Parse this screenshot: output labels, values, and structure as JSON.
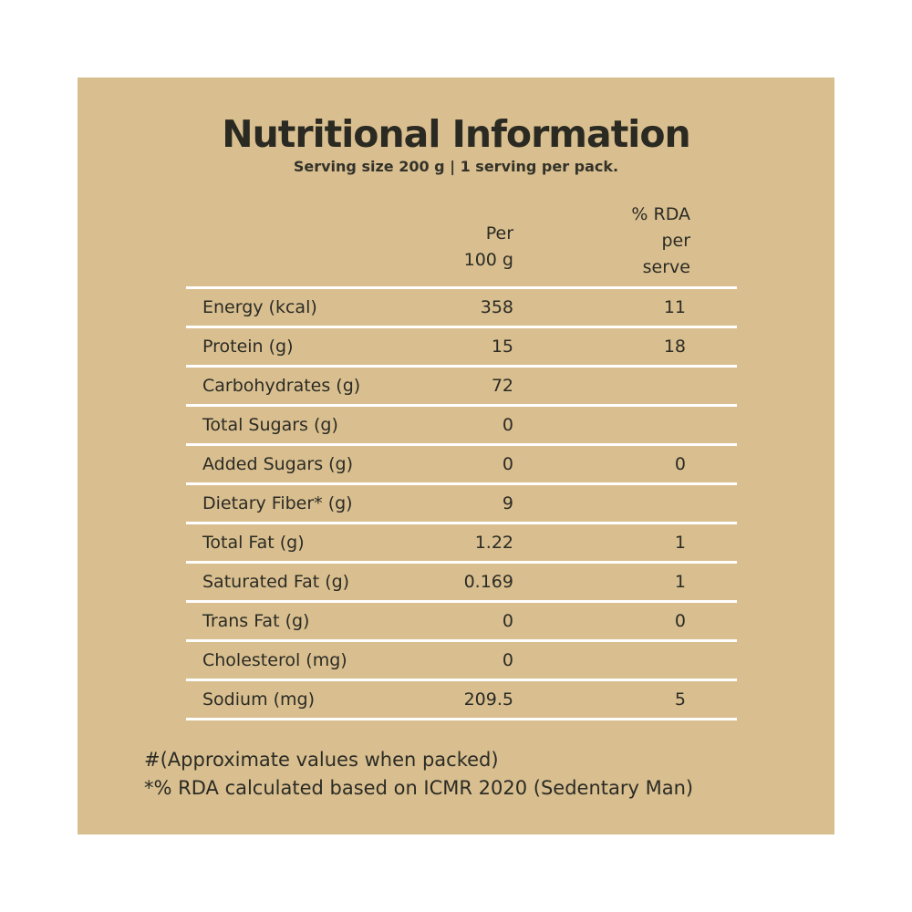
{
  "label": {
    "title": "Nutritional Information",
    "subtitle": "Serving size 200 g  |  1 serving per pack.",
    "header_per": "Per\n100 g",
    "header_rda": "% RDA\nper\nserve",
    "rows": [
      {
        "name": "Energy (kcal)",
        "per": "358",
        "rda": "11"
      },
      {
        "name": "Protein (g)",
        "per": "15",
        "rda": "18"
      },
      {
        "name": "Carbohydrates (g)",
        "per": "72",
        "rda": ""
      },
      {
        "name": "Total Sugars (g)",
        "per": "0",
        "rda": ""
      },
      {
        "name": "Added Sugars (g)",
        "per": "0",
        "rda": "0"
      },
      {
        "name": "Dietary Fiber* (g)",
        "per": "9",
        "rda": ""
      },
      {
        "name": "Total Fat (g)",
        "per": "1.22",
        "rda": "1"
      },
      {
        "name": "Saturated Fat (g)",
        "per": "0.169",
        "rda": "1"
      },
      {
        "name": "Trans Fat (g)",
        "per": "0",
        "rda": "0"
      },
      {
        "name": "Cholesterol (mg)",
        "per": "0",
        "rda": ""
      },
      {
        "name": "Sodium (mg)",
        "per": "209.5",
        "rda": "5"
      }
    ],
    "note_1": "#(Approximate values when packed)",
    "note_2": "*% RDA calculated based on ICMR 2020 (Sedentary Man)"
  },
  "colors": {
    "background": "#d9bf8f",
    "rules": "#ffffff",
    "text": "#2b2b25"
  }
}
